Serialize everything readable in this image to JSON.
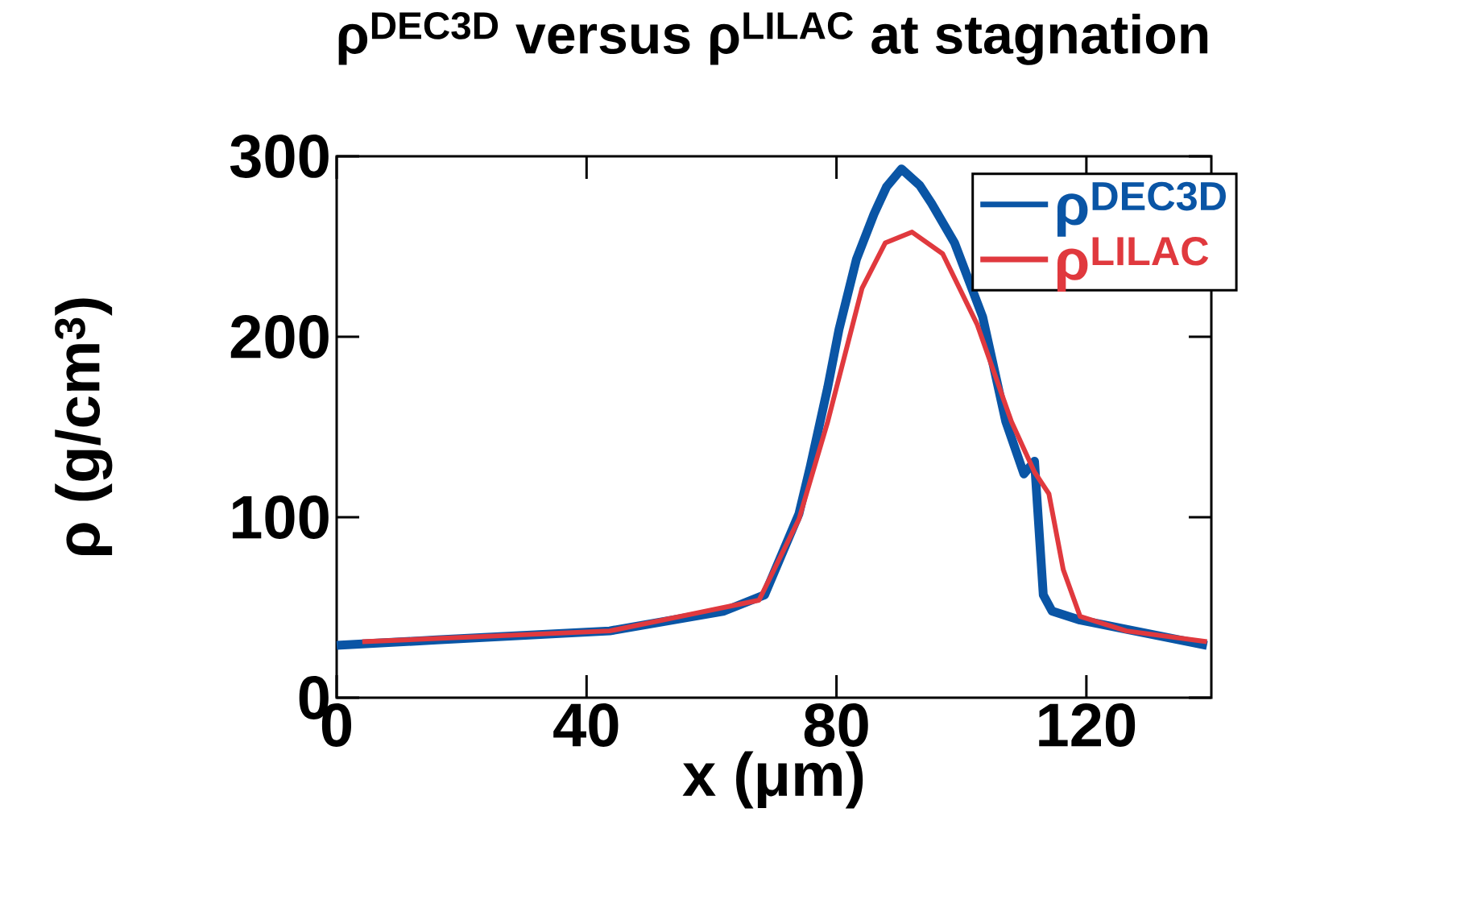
{
  "chart_data": {
    "type": "line",
    "title": "ρ$^{DEC3D}$ versus ρ$^{LILAC}$ at stagnation",
    "xlabel": "x (μm)",
    "ylabel": "ρ (g/cm$^{3}$)",
    "xlim": [
      0,
      140
    ],
    "ylim": [
      0,
      300
    ],
    "xticks": [
      0,
      40,
      80,
      120
    ],
    "yticks": [
      0,
      100,
      200,
      300
    ],
    "grid": false,
    "legend": "top right",
    "line_style": "solid",
    "series": [
      {
        "name": "ρ$^{DEC3D}$",
        "color": "#0a55a5",
        "x": [
          0,
          16,
          43.7,
          62,
          68.5,
          74,
          75.8,
          78.6,
          80.4,
          83.2,
          86,
          88,
          90.4,
          93.3,
          95.2,
          98.9,
          103.4,
          107.1,
          109.9,
          110,
          111.7,
          113.1,
          114.5,
          119,
          139.3
        ],
        "values": [
          29,
          32,
          37,
          48,
          57,
          102,
          128,
          172,
          204,
          243,
          268,
          283,
          293,
          284,
          274,
          252,
          211,
          153,
          125,
          124,
          131,
          57,
          48,
          43,
          29
        ]
      },
      {
        "name": "ρ$^{LILAC}$",
        "color": "#e0393e",
        "x": [
          4.1,
          43.7,
          67.6,
          74,
          78.6,
          84.1,
          87.8,
          92.1,
          97,
          102.5,
          108,
          111.7,
          114,
          116.3,
          119,
          126.4,
          139.3
        ],
        "values": [
          31,
          37,
          54,
          99,
          153,
          227,
          252,
          258,
          246,
          207,
          153,
          125,
          113,
          71,
          45,
          37,
          31
        ]
      }
    ]
  }
}
